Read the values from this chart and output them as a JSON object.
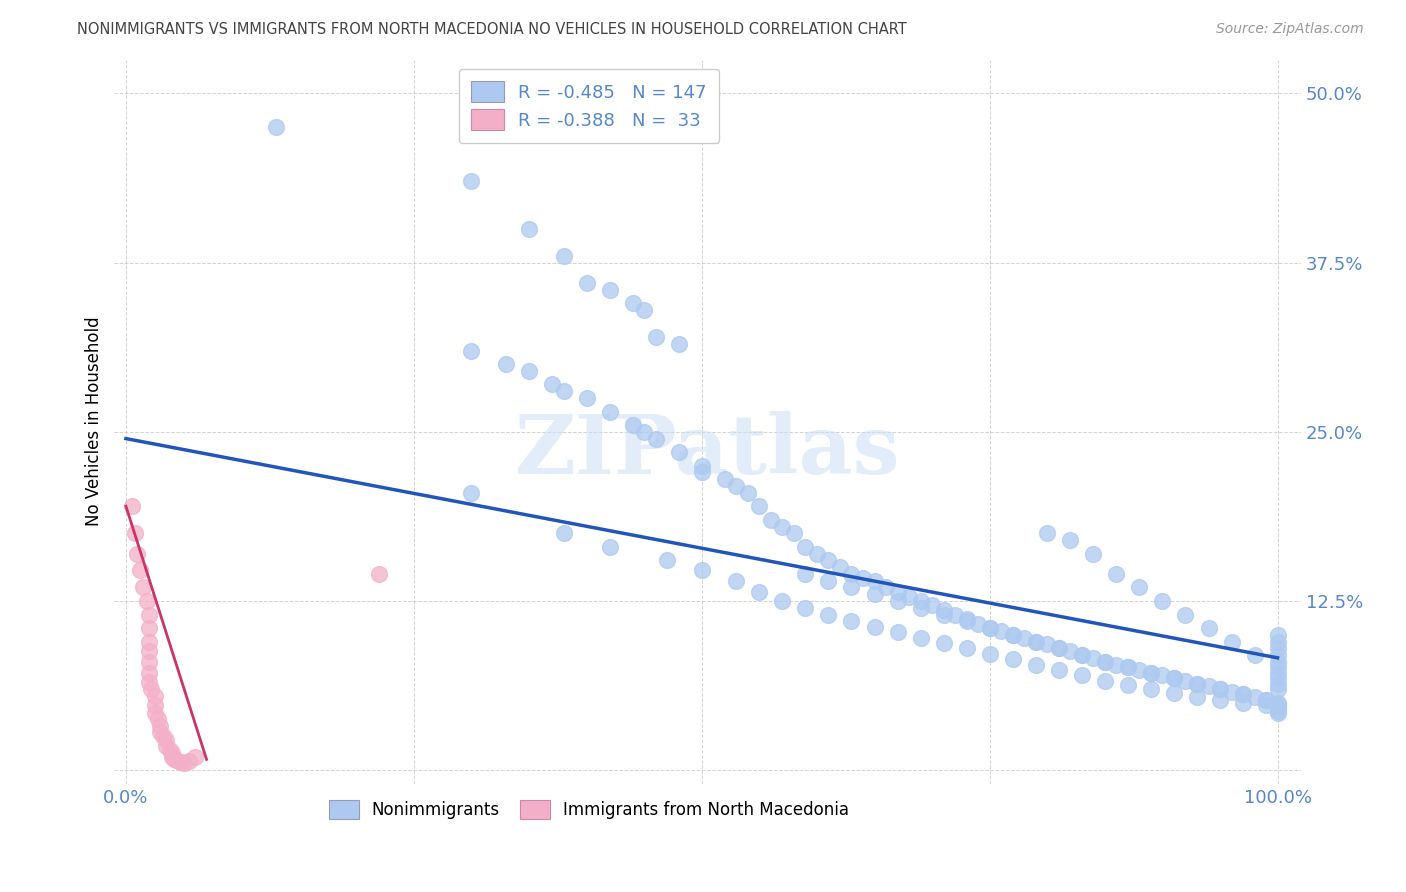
{
  "title": "NONIMMIGRANTS VS IMMIGRANTS FROM NORTH MACEDONIA NO VEHICLES IN HOUSEHOLD CORRELATION CHART",
  "source": "Source: ZipAtlas.com",
  "ylabel": "No Vehicles in Household",
  "xlim": [
    -0.01,
    1.02
  ],
  "ylim": [
    -0.01,
    0.525
  ],
  "yticks": [
    0.0,
    0.125,
    0.25,
    0.375,
    0.5
  ],
  "ytick_labels": [
    "",
    "12.5%",
    "25.0%",
    "37.5%",
    "50.0%"
  ],
  "xticks": [
    0.0,
    0.25,
    0.5,
    0.75,
    1.0
  ],
  "xtick_labels": [
    "0.0%",
    "",
    "",
    "",
    "100.0%"
  ],
  "legend_R1": "-0.485",
  "legend_N1": "147",
  "legend_R2": "-0.388",
  "legend_N2": "33",
  "color_nonimm": "#adc9f0",
  "color_immig": "#f4afc8",
  "color_line_nonimm": "#2255bb",
  "color_line_immig": "#cc3366",
  "color_title": "#444444",
  "color_axis_labels": "#5588cc",
  "watermark": "ZIPatlas",
  "blue_line_x0": 0.0,
  "blue_line_x1": 1.0,
  "blue_line_y0": 0.245,
  "blue_line_y1": 0.083,
  "pink_line_x0": 0.0,
  "pink_line_x1": 0.07,
  "pink_line_y0": 0.195,
  "pink_line_y1": 0.008,
  "blue_scatter_x": [
    0.13,
    0.3,
    0.35,
    0.38,
    0.4,
    0.42,
    0.44,
    0.45,
    0.46,
    0.48,
    0.3,
    0.33,
    0.35,
    0.37,
    0.38,
    0.4,
    0.42,
    0.44,
    0.45,
    0.46,
    0.48,
    0.5,
    0.5,
    0.52,
    0.53,
    0.54,
    0.55,
    0.56,
    0.57,
    0.58,
    0.59,
    0.6,
    0.61,
    0.62,
    0.63,
    0.64,
    0.65,
    0.66,
    0.67,
    0.68,
    0.69,
    0.7,
    0.71,
    0.72,
    0.73,
    0.74,
    0.75,
    0.76,
    0.77,
    0.78,
    0.79,
    0.8,
    0.81,
    0.82,
    0.83,
    0.84,
    0.85,
    0.86,
    0.87,
    0.88,
    0.89,
    0.9,
    0.91,
    0.92,
    0.93,
    0.94,
    0.95,
    0.96,
    0.97,
    0.98,
    0.99,
    1.0,
    1.0,
    1.0,
    1.0,
    1.0,
    0.3,
    0.38,
    0.42,
    0.47,
    0.5,
    0.53,
    0.55,
    0.57,
    0.59,
    0.61,
    0.63,
    0.65,
    0.67,
    0.69,
    0.71,
    0.73,
    0.75,
    0.77,
    0.79,
    0.81,
    0.83,
    0.85,
    0.87,
    0.89,
    0.91,
    0.93,
    0.95,
    0.97,
    0.99,
    0.59,
    0.61,
    0.63,
    0.65,
    0.67,
    0.69,
    0.71,
    0.73,
    0.75,
    0.77,
    0.79,
    0.81,
    0.83,
    0.85,
    0.87,
    0.89,
    0.91,
    0.93,
    0.95,
    0.97,
    0.99,
    1.0,
    0.8,
    0.82,
    0.84,
    0.86,
    0.88,
    0.9,
    0.92,
    0.94,
    0.96,
    0.98,
    1.0,
    1.0,
    1.0,
    1.0,
    1.0,
    1.0,
    1.0,
    1.0,
    1.0,
    1.0
  ],
  "blue_scatter_y": [
    0.475,
    0.435,
    0.4,
    0.38,
    0.36,
    0.355,
    0.345,
    0.34,
    0.32,
    0.315,
    0.31,
    0.3,
    0.295,
    0.285,
    0.28,
    0.275,
    0.265,
    0.255,
    0.25,
    0.245,
    0.235,
    0.225,
    0.22,
    0.215,
    0.21,
    0.205,
    0.195,
    0.185,
    0.18,
    0.175,
    0.165,
    0.16,
    0.155,
    0.15,
    0.145,
    0.142,
    0.14,
    0.135,
    0.132,
    0.128,
    0.125,
    0.122,
    0.118,
    0.115,
    0.112,
    0.108,
    0.105,
    0.103,
    0.1,
    0.098,
    0.095,
    0.093,
    0.09,
    0.088,
    0.085,
    0.083,
    0.08,
    0.078,
    0.076,
    0.074,
    0.072,
    0.07,
    0.068,
    0.066,
    0.064,
    0.062,
    0.06,
    0.058,
    0.056,
    0.054,
    0.052,
    0.05,
    0.048,
    0.046,
    0.044,
    0.042,
    0.205,
    0.175,
    0.165,
    0.155,
    0.148,
    0.14,
    0.132,
    0.125,
    0.12,
    0.115,
    0.11,
    0.106,
    0.102,
    0.098,
    0.094,
    0.09,
    0.086,
    0.082,
    0.078,
    0.074,
    0.07,
    0.066,
    0.063,
    0.06,
    0.057,
    0.054,
    0.052,
    0.05,
    0.048,
    0.145,
    0.14,
    0.135,
    0.13,
    0.125,
    0.12,
    0.115,
    0.11,
    0.105,
    0.1,
    0.095,
    0.09,
    0.085,
    0.08,
    0.076,
    0.072,
    0.068,
    0.064,
    0.06,
    0.056,
    0.052,
    0.048,
    0.175,
    0.17,
    0.16,
    0.145,
    0.135,
    0.125,
    0.115,
    0.105,
    0.095,
    0.085,
    0.1,
    0.095,
    0.09,
    0.085,
    0.08,
    0.076,
    0.072,
    0.068,
    0.064,
    0.06
  ],
  "pink_scatter_x": [
    0.005,
    0.008,
    0.01,
    0.012,
    0.015,
    0.018,
    0.02,
    0.02,
    0.02,
    0.02,
    0.02,
    0.02,
    0.02,
    0.022,
    0.025,
    0.025,
    0.025,
    0.028,
    0.03,
    0.03,
    0.032,
    0.035,
    0.035,
    0.038,
    0.04,
    0.04,
    0.042,
    0.045,
    0.048,
    0.05,
    0.055,
    0.06,
    0.22
  ],
  "pink_scatter_y": [
    0.195,
    0.175,
    0.16,
    0.148,
    0.135,
    0.125,
    0.115,
    0.105,
    0.095,
    0.088,
    0.08,
    0.072,
    0.065,
    0.06,
    0.055,
    0.048,
    0.042,
    0.038,
    0.033,
    0.028,
    0.025,
    0.022,
    0.018,
    0.015,
    0.013,
    0.01,
    0.008,
    0.007,
    0.006,
    0.005,
    0.007,
    0.01,
    0.145
  ]
}
